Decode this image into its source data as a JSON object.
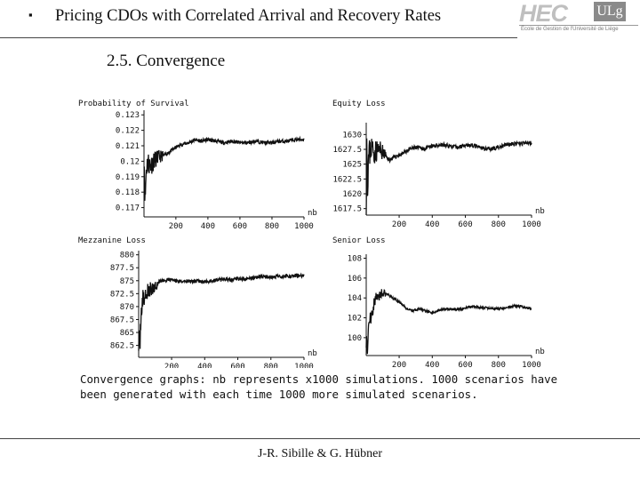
{
  "header": {
    "bullet": "▪",
    "title": "Pricing CDOs with Correlated Arrival and Recovery Rates",
    "logo_main": "HEC",
    "logo_badge": "ULg",
    "logo_sub": "École de Gestion de l'Université de Liège"
  },
  "section_title": "2.5. Convergence",
  "caption_lines": [
    "Convergence graphs: nb represents x1000 simulations. 1000 scenarios have",
    "been generated with each time 1000 more simulated scenarios."
  ],
  "footer": "J-R. Sibille & G. Hübner",
  "colors": {
    "line": "#111111",
    "rule": "#444444",
    "logo": "#bfbfbf"
  },
  "chart_data": [
    {
      "type": "line",
      "title": "Probability of Survival",
      "xlabel": "nb",
      "x_ticks": [
        200,
        400,
        600,
        800,
        1000
      ],
      "y_ticks": [
        "0.123",
        "0.122",
        "0.121",
        "0.12",
        "0.119",
        "0.118",
        "0.117"
      ],
      "xlim": [
        1,
        1000
      ],
      "ylim": [
        0.1164,
        0.1233
      ],
      "axis_cross_y": 0.1164,
      "seed": 11,
      "points": [
        [
          1,
          0.1205
        ],
        [
          8,
          0.1175
        ],
        [
          15,
          0.1195
        ],
        [
          25,
          0.12
        ],
        [
          40,
          0.1197
        ],
        [
          60,
          0.12
        ],
        [
          80,
          0.1202
        ],
        [
          100,
          0.1203
        ],
        [
          130,
          0.1204
        ],
        [
          160,
          0.1206
        ],
        [
          200,
          0.1209
        ],
        [
          240,
          0.1211
        ],
        [
          280,
          0.1212
        ],
        [
          320,
          0.1214
        ],
        [
          360,
          0.1213
        ],
        [
          400,
          0.1214
        ],
        [
          450,
          0.1213
        ],
        [
          500,
          0.1212
        ],
        [
          550,
          0.1213
        ],
        [
          600,
          0.1212
        ],
        [
          650,
          0.1212
        ],
        [
          700,
          0.1213
        ],
        [
          750,
          0.1212
        ],
        [
          800,
          0.1212
        ],
        [
          850,
          0.1213
        ],
        [
          900,
          0.1213
        ],
        [
          950,
          0.1214
        ],
        [
          1000,
          0.1214
        ]
      ],
      "noise": [
        0.0008,
        0.00012
      ]
    },
    {
      "type": "line",
      "title": "Equity Loss",
      "xlabel": "nb",
      "x_ticks": [
        200,
        400,
        600,
        800,
        1000
      ],
      "y_ticks": [
        "1630",
        "1627.5",
        "1625",
        "1622.5",
        "1620",
        "1617.5"
      ],
      "xlim": [
        1,
        1000
      ],
      "ylim": [
        1615.5,
        1632
      ],
      "axis_cross_y": 1616.4,
      "seed": 23,
      "points": [
        [
          1,
          1616
        ],
        [
          4,
          1630
        ],
        [
          8,
          1621
        ],
        [
          15,
          1626
        ],
        [
          30,
          1628
        ],
        [
          50,
          1627
        ],
        [
          80,
          1627.5
        ],
        [
          100,
          1627
        ],
        [
          140,
          1625.7
        ],
        [
          180,
          1626.3
        ],
        [
          220,
          1626.8
        ],
        [
          260,
          1627.5
        ],
        [
          300,
          1627.8
        ],
        [
          350,
          1627.6
        ],
        [
          400,
          1628.0
        ],
        [
          450,
          1628.3
        ],
        [
          500,
          1628.1
        ],
        [
          550,
          1627.8
        ],
        [
          600,
          1628.3
        ],
        [
          650,
          1628.1
        ],
        [
          700,
          1627.7
        ],
        [
          750,
          1627.6
        ],
        [
          800,
          1627.8
        ],
        [
          850,
          1628.3
        ],
        [
          900,
          1628.4
        ],
        [
          950,
          1628.5
        ],
        [
          1000,
          1628.6
        ]
      ],
      "noise": [
        2.5,
        0.35
      ]
    },
    {
      "type": "line",
      "title": "Mezzanine Loss",
      "xlabel": "nb",
      "x_ticks": [
        200,
        400,
        600,
        800,
        1000
      ],
      "y_ticks": [
        "880",
        "877.5",
        "875",
        "872.5",
        "870",
        "867.5",
        "865",
        "862.5"
      ],
      "xlim": [
        1,
        1000
      ],
      "ylim": [
        860.2,
        880.8
      ],
      "axis_cross_y": 860.2,
      "seed": 37,
      "points": [
        [
          1,
          864
        ],
        [
          8,
          862
        ],
        [
          15,
          869
        ],
        [
          25,
          871
        ],
        [
          40,
          872
        ],
        [
          60,
          873
        ],
        [
          80,
          873.3
        ],
        [
          100,
          874
        ],
        [
          130,
          875
        ],
        [
          160,
          875
        ],
        [
          200,
          875.2
        ],
        [
          250,
          874.8
        ],
        [
          300,
          875
        ],
        [
          350,
          874.9
        ],
        [
          400,
          874.8
        ],
        [
          450,
          875
        ],
        [
          500,
          875.3
        ],
        [
          550,
          875.2
        ],
        [
          600,
          875.4
        ],
        [
          650,
          875.3
        ],
        [
          700,
          875.6
        ],
        [
          750,
          875.8
        ],
        [
          800,
          875.7
        ],
        [
          850,
          875.8
        ],
        [
          900,
          875.9
        ],
        [
          950,
          876
        ],
        [
          1000,
          876
        ]
      ],
      "noise": [
        2.2,
        0.35
      ]
    },
    {
      "type": "line",
      "title": "Senior Loss",
      "xlabel": "nb",
      "x_ticks": [
        200,
        400,
        600,
        800,
        1000
      ],
      "y_ticks": [
        "108",
        "106",
        "104",
        "102",
        "100"
      ],
      "xlim": [
        1,
        1000
      ],
      "ylim": [
        98.2,
        108.4
      ],
      "axis_cross_y": 98.2,
      "seed": 51,
      "points": [
        [
          1,
          100
        ],
        [
          8,
          99
        ],
        [
          15,
          101
        ],
        [
          25,
          102
        ],
        [
          40,
          103
        ],
        [
          60,
          104
        ],
        [
          80,
          104.2
        ],
        [
          100,
          104.6
        ],
        [
          130,
          104.4
        ],
        [
          160,
          104
        ],
        [
          200,
          103.6
        ],
        [
          240,
          103
        ],
        [
          280,
          102.7
        ],
        [
          320,
          102.9
        ],
        [
          360,
          102.7
        ],
        [
          400,
          102.5
        ],
        [
          450,
          102.8
        ],
        [
          500,
          102.9
        ],
        [
          550,
          102.8
        ],
        [
          600,
          103
        ],
        [
          650,
          103.1
        ],
        [
          700,
          103
        ],
        [
          750,
          103
        ],
        [
          800,
          102.9
        ],
        [
          850,
          103
        ],
        [
          900,
          103.2
        ],
        [
          950,
          103.1
        ],
        [
          1000,
          102.9
        ]
      ],
      "noise": [
        0.9,
        0.12
      ]
    }
  ]
}
